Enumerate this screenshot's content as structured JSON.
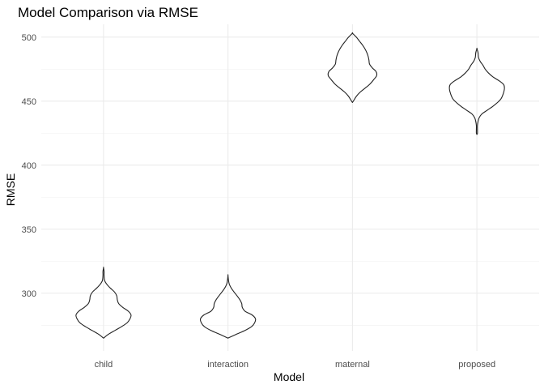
{
  "chart_data": {
    "type": "violin",
    "title": "Model Comparison via RMSE",
    "xlabel": "Model",
    "ylabel": "RMSE",
    "categories": [
      "child",
      "interaction",
      "maternal",
      "proposed"
    ],
    "ylim": [
      255,
      510
    ],
    "yticks": [
      300,
      350,
      400,
      450,
      500
    ],
    "grid": true,
    "legend": "none",
    "line_color": "#222222",
    "violins": [
      {
        "category": "child",
        "min": 265,
        "max": 320,
        "profile": [
          [
            265,
            0.0
          ],
          [
            268,
            0.18
          ],
          [
            271,
            0.42
          ],
          [
            274,
            0.66
          ],
          [
            277,
            0.86
          ],
          [
            280,
            0.96
          ],
          [
            283,
            1.0
          ],
          [
            286,
            0.9
          ],
          [
            289,
            0.7
          ],
          [
            292,
            0.55
          ],
          [
            295,
            0.5
          ],
          [
            298,
            0.48
          ],
          [
            301,
            0.4
          ],
          [
            304,
            0.25
          ],
          [
            307,
            0.12
          ],
          [
            310,
            0.04
          ],
          [
            314,
            0.02
          ],
          [
            317,
            0.02
          ],
          [
            320,
            0.0
          ]
        ]
      },
      {
        "category": "interaction",
        "min": 265,
        "max": 314,
        "profile": [
          [
            265,
            0.0
          ],
          [
            268,
            0.3
          ],
          [
            271,
            0.62
          ],
          [
            274,
            0.86
          ],
          [
            277,
            0.97
          ],
          [
            280,
            1.0
          ],
          [
            283,
            0.88
          ],
          [
            286,
            0.62
          ],
          [
            289,
            0.52
          ],
          [
            292,
            0.5
          ],
          [
            295,
            0.43
          ],
          [
            298,
            0.33
          ],
          [
            301,
            0.22
          ],
          [
            304,
            0.12
          ],
          [
            307,
            0.05
          ],
          [
            310,
            0.02
          ],
          [
            314,
            0.0
          ]
        ]
      },
      {
        "category": "maternal",
        "min": 449,
        "max": 503,
        "profile": [
          [
            449,
            0.0
          ],
          [
            451,
            0.06
          ],
          [
            454,
            0.15
          ],
          [
            457,
            0.28
          ],
          [
            460,
            0.45
          ],
          [
            463,
            0.62
          ],
          [
            467,
            0.78
          ],
          [
            470,
            0.88
          ],
          [
            473,
            0.86
          ],
          [
            476,
            0.72
          ],
          [
            479,
            0.62
          ],
          [
            482,
            0.6
          ],
          [
            485,
            0.57
          ],
          [
            488,
            0.52
          ],
          [
            491,
            0.45
          ],
          [
            494,
            0.36
          ],
          [
            497,
            0.25
          ],
          [
            500,
            0.14
          ],
          [
            503,
            0.0
          ]
        ]
      },
      {
        "category": "proposed",
        "min": 424,
        "max": 491,
        "profile": [
          [
            424,
            0.0
          ],
          [
            425,
            0.02
          ],
          [
            428,
            0.02
          ],
          [
            431,
            0.02
          ],
          [
            434,
            0.04
          ],
          [
            437,
            0.08
          ],
          [
            440,
            0.18
          ],
          [
            443,
            0.38
          ],
          [
            446,
            0.58
          ],
          [
            449,
            0.75
          ],
          [
            452,
            0.88
          ],
          [
            456,
            0.96
          ],
          [
            460,
            1.0
          ],
          [
            463,
            0.97
          ],
          [
            466,
            0.8
          ],
          [
            469,
            0.58
          ],
          [
            472,
            0.42
          ],
          [
            475,
            0.3
          ],
          [
            478,
            0.22
          ],
          [
            481,
            0.12
          ],
          [
            484,
            0.06
          ],
          [
            488,
            0.04
          ],
          [
            491,
            0.0
          ]
        ]
      }
    ]
  }
}
